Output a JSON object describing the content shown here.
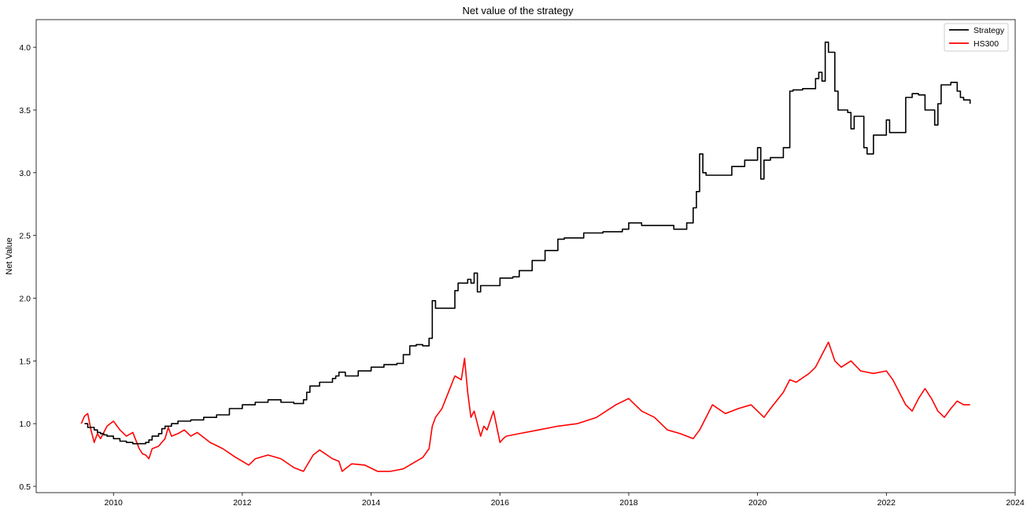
{
  "chart_data": {
    "type": "line",
    "title": "Net value of the strategy",
    "xlabel": "",
    "ylabel": "Net Value",
    "xlim": [
      2008.8,
      2024.0
    ],
    "ylim": [
      0.45,
      4.22
    ],
    "x_ticks": [
      2010,
      2012,
      2014,
      2016,
      2018,
      2020,
      2022,
      2024
    ],
    "y_ticks": [
      0.5,
      1.0,
      1.5,
      2.0,
      2.5,
      3.0,
      3.5,
      4.0
    ],
    "y_tick_labels": [
      "0.5",
      "1.0",
      "1.5",
      "2.0",
      "2.5",
      "3.0",
      "3.5",
      "4.0"
    ],
    "grid": false,
    "legend_position": "top-right",
    "series": [
      {
        "name": "Strategy",
        "color": "#000000",
        "x": [
          2009.55,
          2009.6,
          2009.65,
          2009.7,
          2009.75,
          2009.8,
          2009.85,
          2009.9,
          2010.0,
          2010.1,
          2010.2,
          2010.3,
          2010.4,
          2010.5,
          2010.55,
          2010.6,
          2010.65,
          2010.7,
          2010.75,
          2010.8,
          2010.9,
          2011.0,
          2011.2,
          2011.4,
          2011.5,
          2011.6,
          2011.8,
          2012.0,
          2012.2,
          2012.4,
          2012.6,
          2012.8,
          2012.95,
          2013.0,
          2013.05,
          2013.2,
          2013.4,
          2013.45,
          2013.5,
          2013.6,
          2013.8,
          2014.0,
          2014.2,
          2014.4,
          2014.5,
          2014.6,
          2014.7,
          2014.8,
          2014.9,
          2014.95,
          2015.0,
          2015.1,
          2015.3,
          2015.35,
          2015.4,
          2015.5,
          2015.55,
          2015.6,
          2015.65,
          2015.7,
          2015.8,
          2016.0,
          2016.2,
          2016.3,
          2016.5,
          2016.7,
          2016.9,
          2017.0,
          2017.3,
          2017.6,
          2017.9,
          2018.0,
          2018.2,
          2018.4,
          2018.6,
          2018.7,
          2018.8,
          2018.9,
          2019.0,
          2019.05,
          2019.1,
          2019.15,
          2019.2,
          2019.4,
          2019.6,
          2019.8,
          2020.0,
          2020.05,
          2020.1,
          2020.2,
          2020.3,
          2020.4,
          2020.5,
          2020.55,
          2020.7,
          2020.9,
          2020.95,
          2021.0,
          2021.05,
          2021.1,
          2021.15,
          2021.2,
          2021.25,
          2021.4,
          2021.45,
          2021.5,
          2021.6,
          2021.65,
          2021.7,
          2021.8,
          2021.9,
          2022.0,
          2022.05,
          2022.15,
          2022.3,
          2022.4,
          2022.5,
          2022.6,
          2022.75,
          2022.8,
          2022.85,
          2023.0,
          2023.1,
          2023.15,
          2023.2,
          2023.3
        ],
        "values": [
          1.0,
          0.97,
          0.97,
          0.95,
          0.93,
          0.92,
          0.91,
          0.9,
          0.88,
          0.86,
          0.85,
          0.84,
          0.84,
          0.85,
          0.87,
          0.9,
          0.9,
          0.92,
          0.96,
          0.98,
          1.0,
          1.02,
          1.03,
          1.05,
          1.05,
          1.07,
          1.12,
          1.15,
          1.17,
          1.19,
          1.17,
          1.16,
          1.19,
          1.25,
          1.3,
          1.33,
          1.36,
          1.38,
          1.41,
          1.38,
          1.42,
          1.45,
          1.47,
          1.48,
          1.55,
          1.62,
          1.63,
          1.62,
          1.68,
          1.98,
          1.92,
          1.92,
          2.06,
          2.12,
          2.12,
          2.15,
          2.12,
          2.2,
          2.05,
          2.1,
          2.1,
          2.16,
          2.17,
          2.22,
          2.3,
          2.38,
          2.47,
          2.48,
          2.52,
          2.53,
          2.55,
          2.6,
          2.58,
          2.58,
          2.58,
          2.55,
          2.55,
          2.6,
          2.72,
          2.85,
          3.15,
          3.0,
          2.98,
          2.98,
          3.05,
          3.1,
          3.2,
          2.95,
          3.1,
          3.12,
          3.12,
          3.2,
          3.65,
          3.66,
          3.67,
          3.75,
          3.8,
          3.73,
          4.04,
          3.96,
          3.96,
          3.65,
          3.5,
          3.48,
          3.35,
          3.45,
          3.45,
          3.2,
          3.15,
          3.3,
          3.3,
          3.42,
          3.32,
          3.32,
          3.6,
          3.63,
          3.62,
          3.5,
          3.38,
          3.55,
          3.7,
          3.72,
          3.65,
          3.6,
          3.58,
          3.55
        ],
        "stepped": true
      },
      {
        "name": "HS300",
        "color": "#ff0000",
        "x": [
          2009.5,
          2009.55,
          2009.6,
          2009.65,
          2009.7,
          2009.75,
          2009.8,
          2009.9,
          2010.0,
          2010.1,
          2010.2,
          2010.3,
          2010.4,
          2010.45,
          2010.5,
          2010.55,
          2010.6,
          2010.7,
          2010.8,
          2010.85,
          2010.9,
          2011.0,
          2011.1,
          2011.2,
          2011.3,
          2011.5,
          2011.7,
          2011.9,
          2012.0,
          2012.1,
          2012.2,
          2012.4,
          2012.6,
          2012.8,
          2012.95,
          2013.1,
          2013.2,
          2013.4,
          2013.5,
          2013.55,
          2013.7,
          2013.9,
          2014.1,
          2014.3,
          2014.5,
          2014.7,
          2014.8,
          2014.9,
          2014.95,
          2015.0,
          2015.1,
          2015.2,
          2015.3,
          2015.4,
          2015.45,
          2015.5,
          2015.55,
          2015.6,
          2015.7,
          2015.75,
          2015.8,
          2015.9,
          2016.0,
          2016.05,
          2016.1,
          2016.3,
          2016.6,
          2016.9,
          2017.2,
          2017.5,
          2017.8,
          2018.0,
          2018.1,
          2018.2,
          2018.4,
          2018.6,
          2018.8,
          2019.0,
          2019.1,
          2019.2,
          2019.3,
          2019.5,
          2019.7,
          2019.9,
          2020.0,
          2020.1,
          2020.2,
          2020.4,
          2020.5,
          2020.6,
          2020.8,
          2020.9,
          2021.0,
          2021.1,
          2021.2,
          2021.3,
          2021.45,
          2021.6,
          2021.8,
          2022.0,
          2022.1,
          2022.2,
          2022.3,
          2022.4,
          2022.5,
          2022.6,
          2022.7,
          2022.8,
          2022.9,
          2023.0,
          2023.1,
          2023.2,
          2023.3
        ],
        "values": [
          1.0,
          1.06,
          1.08,
          0.95,
          0.85,
          0.92,
          0.88,
          0.98,
          1.02,
          0.95,
          0.9,
          0.93,
          0.8,
          0.76,
          0.75,
          0.72,
          0.8,
          0.82,
          0.88,
          0.97,
          0.9,
          0.92,
          0.95,
          0.9,
          0.93,
          0.85,
          0.8,
          0.73,
          0.7,
          0.67,
          0.72,
          0.75,
          0.72,
          0.65,
          0.62,
          0.75,
          0.79,
          0.72,
          0.7,
          0.62,
          0.68,
          0.67,
          0.62,
          0.62,
          0.64,
          0.7,
          0.73,
          0.8,
          0.98,
          1.05,
          1.12,
          1.25,
          1.38,
          1.35,
          1.52,
          1.25,
          1.05,
          1.1,
          0.9,
          0.98,
          0.95,
          1.1,
          0.85,
          0.88,
          0.9,
          0.92,
          0.95,
          0.98,
          1.0,
          1.05,
          1.15,
          1.2,
          1.15,
          1.1,
          1.05,
          0.95,
          0.92,
          0.88,
          0.95,
          1.05,
          1.15,
          1.08,
          1.12,
          1.15,
          1.1,
          1.05,
          1.12,
          1.25,
          1.35,
          1.33,
          1.4,
          1.45,
          1.55,
          1.65,
          1.5,
          1.45,
          1.5,
          1.42,
          1.4,
          1.42,
          1.35,
          1.25,
          1.15,
          1.1,
          1.2,
          1.28,
          1.2,
          1.1,
          1.05,
          1.12,
          1.18,
          1.15,
          1.15
        ]
      }
    ]
  }
}
